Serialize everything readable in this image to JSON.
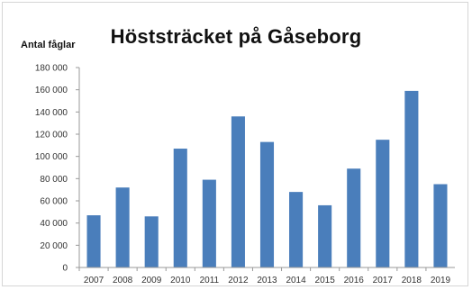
{
  "chart_data": {
    "type": "bar",
    "title": "Höststräcket på Gåseborg",
    "ylabel": "Antal fåglar",
    "xlabel": "",
    "categories": [
      "2007",
      "2008",
      "2009",
      "2010",
      "2011",
      "2012",
      "2013",
      "2014",
      "2015",
      "2016",
      "2017",
      "2018",
      "2019"
    ],
    "values": [
      47000,
      72000,
      46000,
      107000,
      79000,
      136000,
      113000,
      68000,
      56000,
      89000,
      115000,
      159000,
      75000
    ],
    "ylim": [
      0,
      180000
    ],
    "yticks": [
      0,
      20000,
      40000,
      60000,
      80000,
      100000,
      120000,
      140000,
      160000,
      180000
    ],
    "ytick_labels": [
      "0",
      "20 000",
      "40 000",
      "60 000",
      "80 000",
      "100 000",
      "120 000",
      "140 000",
      "160 000",
      "180 000"
    ],
    "bar_color": "#4a7ebb",
    "grid": false,
    "legend": "none"
  }
}
